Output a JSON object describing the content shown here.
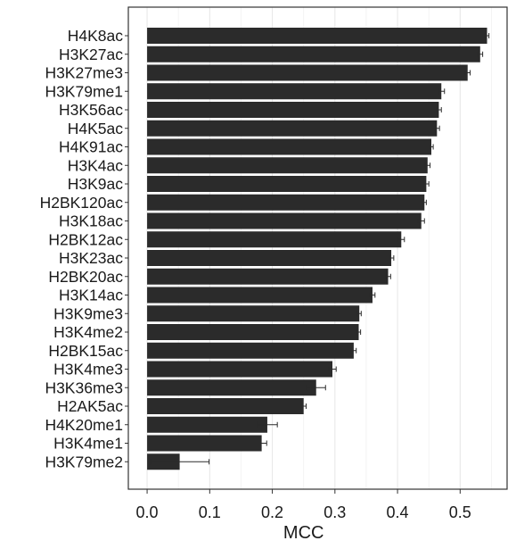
{
  "chart_data": {
    "type": "bar",
    "orientation": "horizontal",
    "title": "",
    "xlabel": "MCC",
    "ylabel": "",
    "xlim": [
      -0.03,
      0.575
    ],
    "xticks": [
      0.0,
      0.1,
      0.2,
      0.3,
      0.4,
      0.5
    ],
    "xtick_labels": [
      "0.0",
      "0.1",
      "0.2",
      "0.3",
      "0.4",
      "0.5"
    ],
    "grid": true,
    "legend": "none",
    "bar_color": "#2b2b2b",
    "categories": [
      "H4K8ac",
      "H3K27ac",
      "H3K27me3",
      "H3K79me1",
      "H3K56ac",
      "H4K5ac",
      "H4K91ac",
      "H3K4ac",
      "H3K9ac",
      "H2BK120ac",
      "H3K18ac",
      "H2BK12ac",
      "H3K23ac",
      "H2BK20ac",
      "H3K14ac",
      "H3K9me3",
      "H3K4me2",
      "H2BK15ac",
      "H3K4me3",
      "H3K36me3",
      "H2AK5ac",
      "H4K20me1",
      "H3K4me1",
      "H3K79me2"
    ],
    "values": [
      0.543,
      0.532,
      0.512,
      0.47,
      0.466,
      0.463,
      0.454,
      0.448,
      0.446,
      0.443,
      0.438,
      0.406,
      0.39,
      0.385,
      0.36,
      0.339,
      0.338,
      0.33,
      0.296,
      0.27,
      0.25,
      0.192,
      0.183,
      0.052
    ],
    "errors": [
      0.003,
      0.004,
      0.004,
      0.005,
      0.004,
      0.004,
      0.003,
      0.004,
      0.004,
      0.003,
      0.005,
      0.005,
      0.004,
      0.004,
      0.004,
      0.003,
      0.003,
      0.004,
      0.006,
      0.015,
      0.004,
      0.016,
      0.008,
      0.047
    ]
  }
}
